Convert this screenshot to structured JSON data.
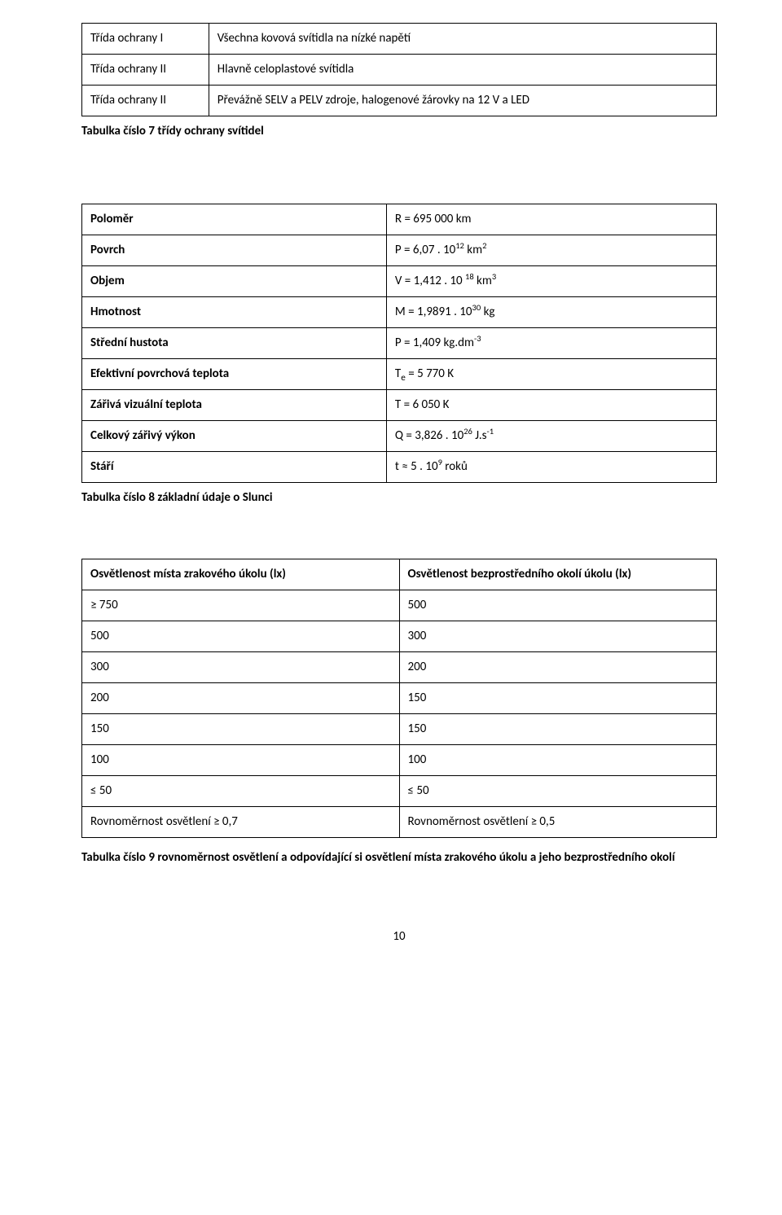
{
  "table7": {
    "rows": [
      {
        "label": "Třída ochrany I",
        "value": "Všechna kovová svítidla na nízké napětí"
      },
      {
        "label": "Třída ochrany II",
        "value": "Hlavně celoplastové svítidla"
      },
      {
        "label": "Třída ochrany II",
        "value": "Převážně SELV a PELV zdroje, halogenové žárovky na 12 V a LED"
      }
    ],
    "caption": "Tabulka číslo 7 třídy ochrany svítidel"
  },
  "table8": {
    "rows": [
      {
        "label": "Poloměr",
        "value_html": "R = 695 000 km"
      },
      {
        "label": "Povrch",
        "value_html": "P = 6,07 . 10<sup>12</sup> km<sup>2</sup>"
      },
      {
        "label": "Objem",
        "value_html": "V = 1,412 . 10 <sup>18</sup> km<sup>3</sup>"
      },
      {
        "label": "Hmotnost",
        "value_html": "M = 1,9891 . 10<sup>30</sup> kg"
      },
      {
        "label": "Střední hustota",
        "value_html": "P = 1,409 kg.dm<sup>-3</sup>"
      },
      {
        "label": "Efektivní povrchová teplota",
        "value_html": "T<sub>e</sub> = 5 770 K"
      },
      {
        "label": "Zářivá vizuální teplota",
        "value_html": "T = 6 050 K"
      },
      {
        "label": "Celkový zářivý výkon",
        "value_html": "Q = 3,826 . 10<sup>26</sup> J.s<sup>-1</sup>"
      },
      {
        "label": "Stáří",
        "value_html": "t ≈ 5 . 10<sup>9</sup> roků"
      }
    ],
    "caption": "Tabulka číslo 8 základní údaje o Slunci"
  },
  "table9": {
    "header": {
      "left": "Osvětlenost místa zrakového úkolu (lx)",
      "right": "Osvětlenost bezprostředního okolí úkolu (lx)"
    },
    "rows": [
      {
        "left": "≥ 750",
        "right": "500"
      },
      {
        "left": "500",
        "right": "300"
      },
      {
        "left": "300",
        "right": "200"
      },
      {
        "left": "200",
        "right": "150"
      },
      {
        "left": "150",
        "right": "150"
      },
      {
        "left": "100",
        "right": "100"
      },
      {
        "left": "≤ 50",
        "right": "≤ 50"
      },
      {
        "left": "Rovnoměrnost osvětlení ≥ 0,7",
        "right": "Rovnoměrnost osvětlení ≥ 0,5"
      }
    ],
    "caption": "Tabulka číslo 9 rovnoměrnost osvětlení a odpovídající si osvětlení místa zrakového úkolu a jeho bezprostředního okolí"
  },
  "page_number": "10",
  "colors": {
    "text": "#000000",
    "border": "#000000",
    "background": "#ffffff"
  },
  "font": {
    "family": "Calibri",
    "size_body": 15
  }
}
